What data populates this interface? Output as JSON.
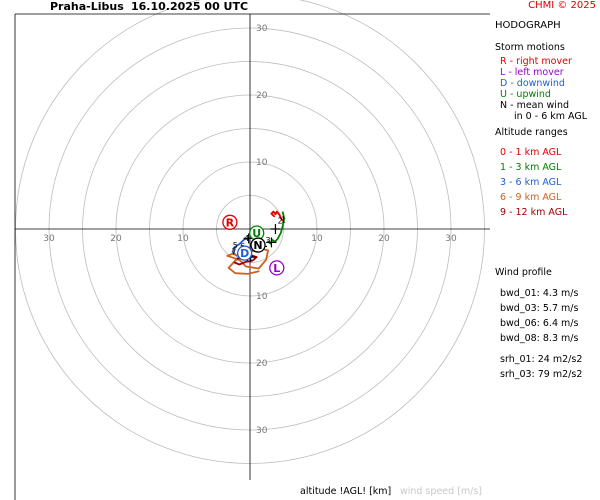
{
  "header": {
    "station": "Praha-Libus",
    "time": "16.10.2025 00 UTC",
    "credit": "CHMI © 2025"
  },
  "panel_title": "HODOGRAPH",
  "storm_motions": {
    "title": "Storm motions",
    "items": [
      {
        "text": "R - right mover",
        "color": "#e00000"
      },
      {
        "text": "L - left mover",
        "color": "#9900cc"
      },
      {
        "text": "D - downwind",
        "color": "#2060d0"
      },
      {
        "text": "U - upwind",
        "color": "#008000"
      },
      {
        "text": "N - mean wind",
        "color": "#000000"
      },
      {
        "text": "in 0 - 6 km AGL",
        "color": "#000000"
      }
    ]
  },
  "altitude_ranges": {
    "title": "Altitude ranges",
    "items": [
      {
        "text": "0 - 1 km AGL",
        "color": "#e00000"
      },
      {
        "text": "1 - 3 km AGL",
        "color": "#008000"
      },
      {
        "text": "3 - 6 km AGL",
        "color": "#2060d0"
      },
      {
        "text": "6 - 9 km AGL",
        "color": "#d06020"
      },
      {
        "text": "9 - 12 km AGL",
        "color": "#a00000"
      }
    ]
  },
  "wind_profile": {
    "title": "Wind profile",
    "items": [
      "bwd_01: 4.3 m/s",
      "bwd_03: 5.7 m/s",
      "bwd_06: 6.4 m/s",
      "bwd_08: 8.3 m/s",
      "srh_01: 24 m2/s2",
      "srh_03: 79 m2/s2"
    ]
  },
  "footer": {
    "altitude_label": "altitude !AGL! [km]",
    "speed_label": "wind speed [m/s]"
  },
  "chart_data": {
    "type": "line",
    "title": "HODOGRAPH",
    "xlabel": "",
    "ylabel": "",
    "xlim": [
      -35,
      35
    ],
    "ylim": [
      -35,
      35
    ],
    "ring_radii": [
      5,
      10,
      15,
      20,
      25,
      30,
      35
    ],
    "axis_tick_labels": [
      10,
      20,
      30
    ],
    "series": [
      {
        "range": "0 - 1 km AGL",
        "color": "#e00000",
        "points": [
          [
            5.0,
            1.2
          ],
          [
            4.6,
            1.6
          ],
          [
            4.4,
            2.1
          ],
          [
            4.0,
            2.6
          ],
          [
            3.8,
            2.2
          ],
          [
            3.5,
            2.6
          ],
          [
            3.2,
            2.3
          ],
          [
            3.6,
            1.9
          ]
        ]
      },
      {
        "range": "1 - 3 km AGL",
        "color": "#008000",
        "points": [
          [
            4.9,
            2.5
          ],
          [
            5.1,
            1.6
          ],
          [
            4.9,
            0.5
          ],
          [
            4.6,
            -0.6
          ],
          [
            4.1,
            -1.5
          ],
          [
            3.7,
            -1.9
          ],
          [
            3.3,
            -1.6
          ],
          [
            3.1,
            -2.2
          ],
          [
            2.7,
            -1.9
          ]
        ]
      },
      {
        "range": "3 - 6 km AGL",
        "color": "#2060d0",
        "points": [
          [
            -0.7,
            -1.4
          ],
          [
            -1.5,
            -2.2
          ],
          [
            -2.3,
            -2.7
          ],
          [
            -2.6,
            -3.4
          ],
          [
            -2.0,
            -4.0
          ],
          [
            -1.2,
            -3.6
          ],
          [
            -0.9,
            -4.3
          ]
        ]
      },
      {
        "range": "6 - 9 km AGL",
        "color": "#d06020",
        "points": [
          [
            0.0,
            -3.6
          ],
          [
            -0.8,
            -4.2
          ],
          [
            -1.8,
            -4.0
          ],
          [
            -2.6,
            -3.7
          ],
          [
            -3.4,
            -4.0
          ],
          [
            -1.6,
            -4.6
          ],
          [
            -0.6,
            -5.6
          ],
          [
            1.3,
            -5.9
          ],
          [
            2.4,
            -4.6
          ],
          [
            2.7,
            -3.2
          ],
          [
            1.4,
            -2.9
          ],
          [
            -0.4,
            -3.6
          ],
          [
            -2.2,
            -4.7
          ],
          [
            -3.2,
            -5.8
          ],
          [
            -2.2,
            -6.6
          ],
          [
            -0.3,
            -6.7
          ],
          [
            1.3,
            -6.3
          ]
        ]
      },
      {
        "range": "9 - 12 km AGL",
        "color": "#a00000",
        "points": [
          [
            -0.3,
            -3.8
          ],
          [
            -1.0,
            -4.4
          ],
          [
            -1.9,
            -4.4
          ],
          [
            -1.1,
            -4.0
          ],
          [
            0.1,
            -3.9
          ],
          [
            1.0,
            -4.2
          ],
          [
            0.4,
            -4.7
          ],
          [
            -0.6,
            -4.9
          ],
          [
            -1.6,
            -5.3
          ],
          [
            -2.3,
            -5.0
          ]
        ]
      }
    ],
    "storm_motions": [
      {
        "label": "R",
        "x": -3.0,
        "y": 1.0,
        "color": "#e00000"
      },
      {
        "label": "L",
        "x": 4.0,
        "y": -5.8,
        "color": "#9900cc"
      },
      {
        "label": "D",
        "x": -0.8,
        "y": -3.6,
        "color": "#2060d0"
      },
      {
        "label": "U",
        "x": 1.0,
        "y": -0.6,
        "color": "#008000"
      },
      {
        "label": "N",
        "x": 1.2,
        "y": -2.4,
        "color": "#000000"
      }
    ],
    "altitude_marks": [
      {
        "label": "1",
        "x": 5.0,
        "y": 1.0
      },
      {
        "label": "2",
        "x": 4.5,
        "y": 0.8
      },
      {
        "label": "3",
        "x": 2.7,
        "y": -2.1
      },
      {
        "label": "4",
        "x": -0.5,
        "y": -1.8
      },
      {
        "label": "5",
        "x": -2.2,
        "y": -2.8
      },
      {
        "label": "6",
        "x": -1.1,
        "y": -3.0
      },
      {
        "label": "7",
        "x": -2.4,
        "y": -3.8
      },
      {
        "label": "8",
        "x": 0.3,
        "y": -3.2
      },
      {
        "label": "9",
        "x": 0.8,
        "y": -3.4
      }
    ],
    "crosses": [
      [
        3.8,
        0.0
      ],
      [
        1.8,
        -2.6
      ],
      [
        3.2,
        -2.0
      ],
      [
        0.1,
        -4.2
      ],
      [
        -0.4,
        -4.0
      ],
      [
        -0.2,
        -1.4
      ]
    ]
  }
}
